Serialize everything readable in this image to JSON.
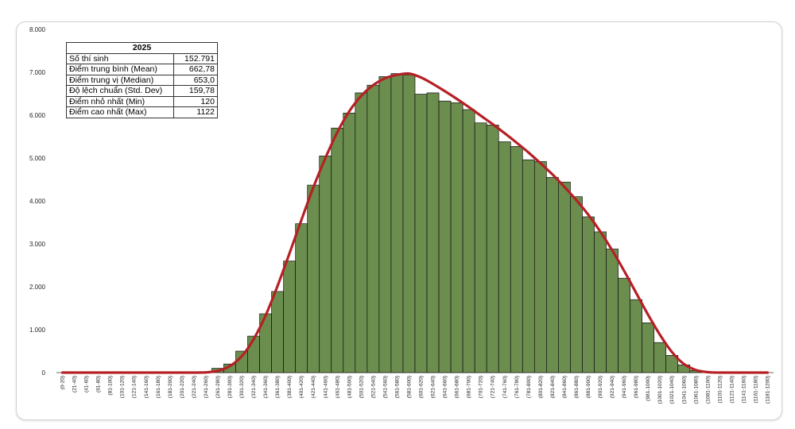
{
  "table": {
    "header": "2025",
    "rows": [
      {
        "label": "Số thí sinh",
        "value": "152.791"
      },
      {
        "label": "Điểm trung bình (Mean)",
        "value": "662,78"
      },
      {
        "label": "Điểm trung vị (Median)",
        "value": "653,0"
      },
      {
        "label": "Độ lệch chuẩn (Std. Dev)",
        "value": "159,78"
      },
      {
        "label": "Điểm nhỏ nhất (Min)",
        "value": "120"
      },
      {
        "label": "Điểm cao nhất (Max)",
        "value": "1122"
      }
    ]
  },
  "chart_data": {
    "type": "bar",
    "ylim": [
      0,
      8000
    ],
    "y_ticks": [
      "0",
      "1.000",
      "2.000",
      "3.000",
      "4.000",
      "5.000",
      "6.000",
      "7.000",
      "8.000"
    ],
    "y_tick_values": [
      0,
      1000,
      2000,
      3000,
      4000,
      5000,
      6000,
      7000,
      8000
    ],
    "grid": false,
    "legend": "none",
    "categories": [
      "(0-20)",
      "(21-40)",
      "(41-60)",
      "(61-80)",
      "(81-100)",
      "(101-120)",
      "(121-140)",
      "(141-160)",
      "(161-180)",
      "(181-200)",
      "(201-220)",
      "(221-240)",
      "(241-260)",
      "(261-280)",
      "(281-300)",
      "(301-320)",
      "(321-340)",
      "(341-360)",
      "(361-380)",
      "(381-400)",
      "(401-420)",
      "(421-440)",
      "(441-460)",
      "(461-480)",
      "(481-500)",
      "(501-520)",
      "(521-540)",
      "(541-560)",
      "(561-580)",
      "(581-600)",
      "(601-620)",
      "(621-640)",
      "(641-660)",
      "(661-680)",
      "(681-700)",
      "(701-720)",
      "(721-740)",
      "(741-760)",
      "(761-780)",
      "(781-800)",
      "(801-820)",
      "(821-840)",
      "(841-860)",
      "(861-880)",
      "(881-900)",
      "(901-920)",
      "(921-940)",
      "(941-960)",
      "(961-980)",
      "(981-1000)",
      "(1001-1020)",
      "(1021-1040)",
      "(1041-1060)",
      "(1061-1080)",
      "(1081-1100)",
      "(1101-1120)",
      "(1121-1140)",
      "(1141-1160)",
      "(1161-1180)",
      "(1181-1200)"
    ],
    "values": [
      0,
      0,
      0,
      0,
      0,
      0,
      0,
      0,
      0,
      0,
      0,
      0,
      0,
      100,
      200,
      500,
      850,
      1370,
      1890,
      2600,
      3470,
      4370,
      5050,
      5700,
      6050,
      6520,
      6700,
      6900,
      6970,
      6940,
      6490,
      6520,
      6330,
      6290,
      6130,
      5820,
      5770,
      5380,
      5270,
      4960,
      4920,
      4550,
      4440,
      4100,
      3630,
      3280,
      2880,
      2200,
      1700,
      1160,
      700,
      400,
      180,
      50,
      0,
      0,
      0,
      0,
      0,
      0
    ],
    "fit_curve": [
      0,
      0,
      0,
      0,
      0,
      0,
      0,
      0,
      0,
      0,
      0,
      0,
      5,
      40,
      150,
      380,
      780,
      1330,
      2020,
      2780,
      3560,
      4320,
      5000,
      5600,
      6090,
      6450,
      6700,
      6860,
      6940,
      6970,
      6880,
      6730,
      6560,
      6380,
      6190,
      5990,
      5790,
      5580,
      5360,
      5130,
      4880,
      4620,
      4330,
      4020,
      3680,
      3290,
      2850,
      2370,
      1860,
      1350,
      880,
      480,
      200,
      60,
      10,
      0,
      0,
      0,
      0,
      0
    ]
  }
}
